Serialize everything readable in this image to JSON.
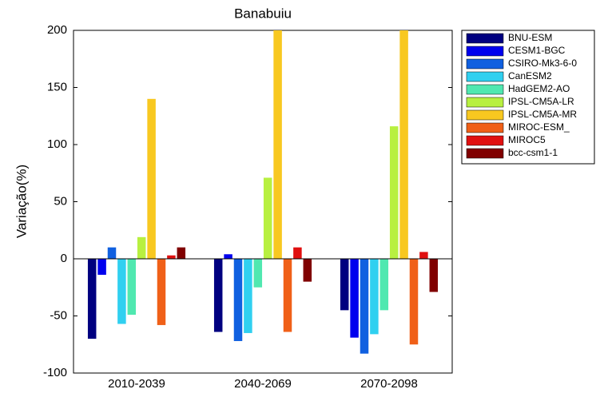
{
  "chart_data": {
    "type": "bar",
    "title": "Banabuiu",
    "y_label": "Variação(%)",
    "categories": [
      "2010-2039",
      "2040-2069",
      "2070-2098"
    ],
    "series": [
      {
        "name": "BNU-ESM",
        "color": "#000080",
        "values": [
          -70,
          -64,
          -45
        ]
      },
      {
        "name": "CESM1-BGC",
        "color": "#0000ee",
        "values": [
          -14,
          4,
          -69
        ]
      },
      {
        "name": "CSIRO-Mk3-6-0",
        "color": "#1060e0",
        "values": [
          10,
          -72,
          -83
        ]
      },
      {
        "name": "CanESM2",
        "color": "#30d0f0",
        "values": [
          -57,
          -65,
          -66
        ]
      },
      {
        "name": "HadGEM2-AO",
        "color": "#50e8b0",
        "values": [
          -49,
          -25,
          -45
        ]
      },
      {
        "name": "IPSL-CM5A-LR",
        "color": "#b8f040",
        "values": [
          19,
          71,
          116
        ]
      },
      {
        "name": "IPSL-CM5A-MR",
        "color": "#f8c820",
        "values": [
          140,
          200,
          200
        ]
      },
      {
        "name": "MIROC-ESM_",
        "color": "#f06018",
        "values": [
          -58,
          -64,
          -75
        ]
      },
      {
        "name": "MIROC5",
        "color": "#e01010",
        "values": [
          3,
          10,
          6
        ]
      },
      {
        "name": "bcc-csm1-1",
        "color": "#800000",
        "values": [
          10,
          -20,
          -29
        ]
      }
    ],
    "ylim": [
      -100,
      200
    ],
    "yticks": [
      -100,
      -50,
      0,
      50,
      100,
      150,
      200
    ],
    "legend": "outside-right"
  }
}
